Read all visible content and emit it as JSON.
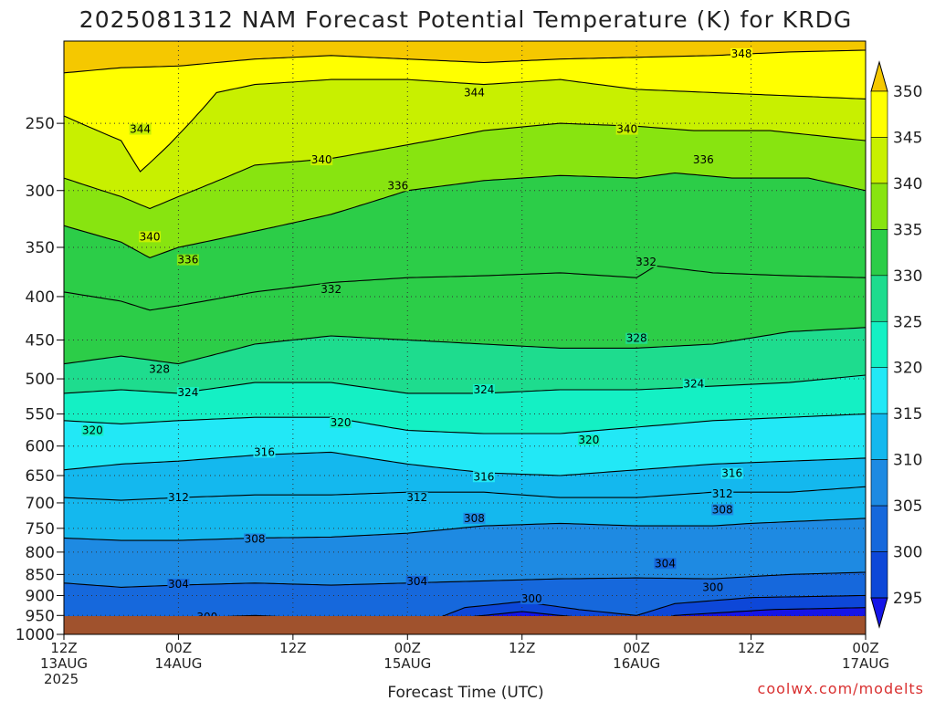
{
  "chart_data": {
    "type": "contour",
    "title": "2025081312 NAM Forecast Potential Temperature (K) for KRDG",
    "xlabel": "Forecast Time (UTC)",
    "ylabel": "",
    "credit": "coolwx.com/modelts",
    "x_range_hours": [
      0,
      84
    ],
    "x_ticks": [
      {
        "hour": 0,
        "lines": [
          "12Z",
          "13AUG",
          "2025"
        ]
      },
      {
        "hour": 12,
        "lines": [
          "00Z",
          "14AUG"
        ]
      },
      {
        "hour": 24,
        "lines": [
          "12Z"
        ]
      },
      {
        "hour": 36,
        "lines": [
          "00Z",
          "15AUG"
        ]
      },
      {
        "hour": 48,
        "lines": [
          "12Z"
        ]
      },
      {
        "hour": 60,
        "lines": [
          "00Z",
          "16AUG"
        ]
      },
      {
        "hour": 72,
        "lines": [
          "12Z"
        ]
      },
      {
        "hour": 84,
        "lines": [
          "00Z",
          "17AUG"
        ]
      }
    ],
    "y_axis": {
      "scale": "log",
      "top": 200,
      "bottom": 1000,
      "inverted": true,
      "ticks": [
        250,
        300,
        350,
        400,
        450,
        500,
        550,
        600,
        650,
        700,
        750,
        800,
        850,
        900,
        950,
        1000
      ]
    },
    "grid": true,
    "colorbar": {
      "levels": [
        295,
        300,
        305,
        310,
        315,
        320,
        325,
        330,
        335,
        340,
        345,
        350
      ],
      "colors": [
        "#1515e8",
        "#0d47d8",
        "#1668dc",
        "#1e8ae2",
        "#14b8ee",
        "#22e8f6",
        "#14f0c4",
        "#1edc8e",
        "#2ccd48",
        "#88e410",
        "#c8f000",
        "#ffff00",
        "#f5c800"
      ]
    },
    "contour_levels": [
      296,
      300,
      304,
      308,
      312,
      316,
      320,
      324,
      328,
      332,
      336,
      340,
      344,
      348
    ],
    "isentropes": [
      {
        "theta": 296,
        "pts": [
          [
            0,
            985
          ],
          [
            4,
            990
          ],
          [
            6,
            992
          ],
          [
            10,
            990
          ],
          [
            24,
            975
          ],
          [
            28,
            988
          ],
          [
            38,
            990
          ],
          [
            42,
            955
          ],
          [
            48,
            940
          ],
          [
            54,
            955
          ],
          [
            60,
            980
          ],
          [
            64,
            950
          ],
          [
            74,
            935
          ],
          [
            84,
            930
          ]
        ]
      },
      {
        "theta": 300,
        "pts": [
          [
            0,
            955
          ],
          [
            4,
            965
          ],
          [
            10,
            960
          ],
          [
            20,
            950
          ],
          [
            28,
            960
          ],
          [
            34,
            970
          ],
          [
            38,
            968
          ],
          [
            42,
            930
          ],
          [
            48,
            915
          ],
          [
            54,
            935
          ],
          [
            60,
            950
          ],
          [
            64,
            920
          ],
          [
            72,
            905
          ],
          [
            84,
            900
          ]
        ]
      },
      {
        "theta": 304,
        "pts": [
          [
            0,
            870
          ],
          [
            6,
            880
          ],
          [
            12,
            875
          ],
          [
            20,
            870
          ],
          [
            28,
            875
          ],
          [
            36,
            870
          ],
          [
            44,
            865
          ],
          [
            52,
            860
          ],
          [
            60,
            858
          ],
          [
            68,
            860
          ],
          [
            76,
            850
          ],
          [
            84,
            845
          ]
        ]
      },
      {
        "theta": 308,
        "pts": [
          [
            0,
            770
          ],
          [
            6,
            775
          ],
          [
            12,
            775
          ],
          [
            20,
            770
          ],
          [
            28,
            768
          ],
          [
            36,
            760
          ],
          [
            44,
            745
          ],
          [
            52,
            740
          ],
          [
            60,
            745
          ],
          [
            68,
            745
          ],
          [
            72,
            740
          ],
          [
            84,
            730
          ]
        ]
      },
      {
        "theta": 312,
        "pts": [
          [
            0,
            690
          ],
          [
            6,
            695
          ],
          [
            12,
            690
          ],
          [
            20,
            685
          ],
          [
            28,
            685
          ],
          [
            36,
            680
          ],
          [
            44,
            680
          ],
          [
            52,
            690
          ],
          [
            60,
            690
          ],
          [
            68,
            680
          ],
          [
            76,
            680
          ],
          [
            84,
            670
          ]
        ]
      },
      {
        "theta": 316,
        "pts": [
          [
            0,
            640
          ],
          [
            6,
            630
          ],
          [
            12,
            625
          ],
          [
            20,
            615
          ],
          [
            28,
            610
          ],
          [
            36,
            630
          ],
          [
            44,
            645
          ],
          [
            52,
            650
          ],
          [
            60,
            640
          ],
          [
            68,
            630
          ],
          [
            76,
            625
          ],
          [
            84,
            620
          ]
        ]
      },
      {
        "theta": 320,
        "pts": [
          [
            0,
            560
          ],
          [
            6,
            565
          ],
          [
            12,
            560
          ],
          [
            20,
            555
          ],
          [
            28,
            555
          ],
          [
            36,
            575
          ],
          [
            44,
            580
          ],
          [
            52,
            580
          ],
          [
            60,
            570
          ],
          [
            68,
            560
          ],
          [
            76,
            555
          ],
          [
            84,
            550
          ]
        ]
      },
      {
        "theta": 324,
        "pts": [
          [
            0,
            520
          ],
          [
            6,
            515
          ],
          [
            12,
            520
          ],
          [
            20,
            505
          ],
          [
            28,
            505
          ],
          [
            36,
            520
          ],
          [
            44,
            520
          ],
          [
            52,
            515
          ],
          [
            60,
            515
          ],
          [
            68,
            510
          ],
          [
            76,
            505
          ],
          [
            84,
            495
          ]
        ]
      },
      {
        "theta": 328,
        "pts": [
          [
            0,
            480
          ],
          [
            6,
            470
          ],
          [
            12,
            480
          ],
          [
            20,
            455
          ],
          [
            28,
            445
          ],
          [
            36,
            450
          ],
          [
            44,
            455
          ],
          [
            52,
            460
          ],
          [
            60,
            460
          ],
          [
            68,
            455
          ],
          [
            76,
            440
          ],
          [
            84,
            435
          ]
        ]
      },
      {
        "theta": 332,
        "pts": [
          [
            0,
            395
          ],
          [
            6,
            405
          ],
          [
            9,
            415
          ],
          [
            12,
            410
          ],
          [
            20,
            395
          ],
          [
            28,
            385
          ],
          [
            36,
            380
          ],
          [
            44,
            378
          ],
          [
            52,
            375
          ],
          [
            60,
            380
          ],
          [
            62,
            368
          ],
          [
            68,
            375
          ],
          [
            76,
            378
          ],
          [
            84,
            380
          ]
        ]
      },
      {
        "theta": 336,
        "pts": [
          [
            0,
            330
          ],
          [
            6,
            345
          ],
          [
            9,
            360
          ],
          [
            12,
            350
          ],
          [
            20,
            335
          ],
          [
            28,
            320
          ],
          [
            36,
            300
          ],
          [
            44,
            292
          ],
          [
            52,
            288
          ],
          [
            60,
            290
          ],
          [
            64,
            286
          ],
          [
            70,
            290
          ],
          [
            78,
            290
          ],
          [
            84,
            300
          ]
        ]
      },
      {
        "theta": 340,
        "pts": [
          [
            0,
            290
          ],
          [
            6,
            305
          ],
          [
            9,
            315
          ],
          [
            12,
            305
          ],
          [
            20,
            280
          ],
          [
            28,
            275
          ],
          [
            36,
            265
          ],
          [
            44,
            255
          ],
          [
            52,
            250
          ],
          [
            60,
            252
          ],
          [
            66,
            255
          ],
          [
            74,
            255
          ],
          [
            84,
            262
          ]
        ]
      },
      {
        "theta": 344,
        "pts": [
          [
            0,
            245
          ],
          [
            6,
            262
          ],
          [
            8,
            285
          ],
          [
            11,
            265
          ],
          [
            16,
            230
          ],
          [
            20,
            225
          ],
          [
            28,
            222
          ],
          [
            36,
            222
          ],
          [
            44,
            225
          ],
          [
            52,
            222
          ],
          [
            60,
            228
          ],
          [
            68,
            230
          ],
          [
            76,
            232
          ],
          [
            84,
            234
          ]
        ]
      },
      {
        "theta": 348,
        "pts": [
          [
            0,
            218
          ],
          [
            6,
            215
          ],
          [
            12,
            214
          ],
          [
            20,
            210
          ],
          [
            28,
            208
          ],
          [
            36,
            210
          ],
          [
            44,
            212
          ],
          [
            52,
            210
          ],
          [
            60,
            209
          ],
          [
            68,
            208
          ],
          [
            76,
            206
          ],
          [
            84,
            205
          ]
        ]
      }
    ],
    "contour_labels": [
      {
        "text": "348",
        "hour": 71,
        "p": 207
      },
      {
        "text": "344",
        "hour": 43,
        "p": 230
      },
      {
        "text": "344",
        "hour": 8,
        "p": 254
      },
      {
        "text": "340",
        "hour": 59,
        "p": 254
      },
      {
        "text": "340",
        "hour": 27,
        "p": 276
      },
      {
        "text": "336",
        "hour": 67,
        "p": 276
      },
      {
        "text": "336",
        "hour": 35,
        "p": 296
      },
      {
        "text": "340",
        "hour": 9,
        "p": 340
      },
      {
        "text": "336",
        "hour": 13,
        "p": 362
      },
      {
        "text": "332",
        "hour": 61,
        "p": 364
      },
      {
        "text": "332",
        "hour": 28,
        "p": 392
      },
      {
        "text": "328",
        "hour": 60,
        "p": 448
      },
      {
        "text": "328",
        "hour": 10,
        "p": 487
      },
      {
        "text": "324",
        "hour": 44,
        "p": 515
      },
      {
        "text": "324",
        "hour": 66,
        "p": 507
      },
      {
        "text": "324",
        "hour": 13,
        "p": 519
      },
      {
        "text": "320",
        "hour": 3,
        "p": 575
      },
      {
        "text": "320",
        "hour": 29,
        "p": 563
      },
      {
        "text": "320",
        "hour": 55,
        "p": 590
      },
      {
        "text": "316",
        "hour": 21,
        "p": 610
      },
      {
        "text": "316",
        "hour": 44,
        "p": 652
      },
      {
        "text": "316",
        "hour": 70,
        "p": 646
      },
      {
        "text": "312",
        "hour": 12,
        "p": 690
      },
      {
        "text": "312",
        "hour": 37,
        "p": 690
      },
      {
        "text": "312",
        "hour": 69,
        "p": 683
      },
      {
        "text": "308",
        "hour": 43,
        "p": 730
      },
      {
        "text": "308",
        "hour": 69,
        "p": 713
      },
      {
        "text": "308",
        "hour": 20,
        "p": 772
      },
      {
        "text": "304",
        "hour": 63,
        "p": 825
      },
      {
        "text": "304",
        "hour": 12,
        "p": 873
      },
      {
        "text": "304",
        "hour": 37,
        "p": 866
      },
      {
        "text": "300",
        "hour": 49,
        "p": 908
      },
      {
        "text": "300",
        "hour": 68,
        "p": 880
      },
      {
        "text": "300",
        "hour": 15,
        "p": 954
      }
    ]
  }
}
